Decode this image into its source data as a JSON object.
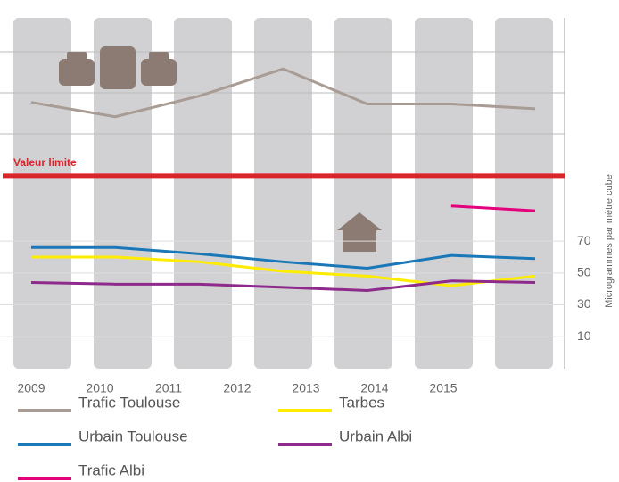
{
  "chart_data": {
    "type": "line",
    "categories": [
      "2009",
      "2010",
      "2011",
      "2012",
      "2013",
      "2014",
      "2015"
    ],
    "series": [
      {
        "name": "Trafic Toulouse",
        "color": "#a89c94",
        "values": [
          157,
          148,
          161,
          178,
          156,
          156,
          153
        ]
      },
      {
        "name": "Tarbes",
        "color": "#ffec00",
        "values": [
          60,
          60,
          57,
          51,
          48,
          42,
          48
        ]
      },
      {
        "name": "Urbain Toulouse",
        "color": "#1a78b8",
        "values": [
          66,
          66,
          62,
          57,
          53,
          61,
          59
        ]
      },
      {
        "name": "Urbain Albi",
        "color": "#8e2a8c",
        "values": [
          44,
          43,
          43,
          41,
          39,
          45,
          44
        ]
      },
      {
        "name": "Trafic Albi",
        "color": "#e5007e",
        "values": [
          null,
          null,
          null,
          null,
          null,
          92,
          89
        ]
      }
    ],
    "ylabel": "Microgrammes par mètre cube",
    "ylim": [
      -10,
      210
    ],
    "yticks": [
      10,
      30,
      50,
      70
    ],
    "grid": true,
    "annotations": [
      {
        "label": "Valeur limite",
        "value": 111,
        "color": "#d9262b"
      }
    ]
  }
}
